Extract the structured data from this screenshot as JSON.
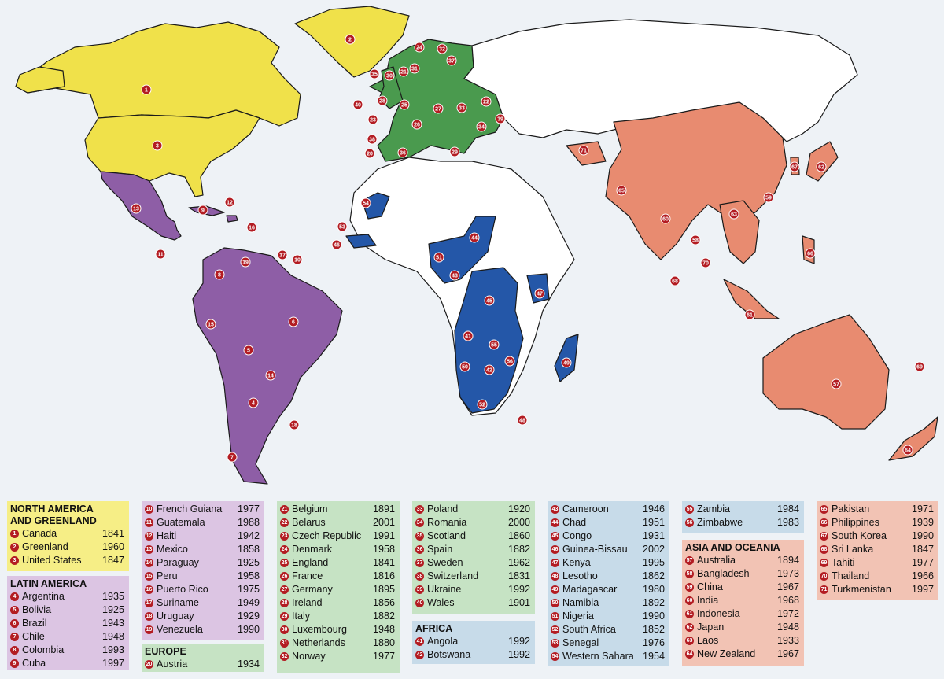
{
  "colors": {
    "north_america": "#f0e14a",
    "latin_america": "#8e5ea6",
    "europe": "#4a9a4e",
    "africa": "#2457a8",
    "asia_oceania": "#e88b70",
    "badge": "#b31c22"
  },
  "markers": [
    "1",
    "2",
    "3",
    "4",
    "5",
    "6",
    "7",
    "8",
    "9",
    "10",
    "11",
    "12",
    "13",
    "14",
    "15",
    "16",
    "17",
    "18",
    "19",
    "20",
    "21",
    "22",
    "23",
    "24",
    "25",
    "26",
    "27",
    "28",
    "29",
    "30",
    "31",
    "32",
    "33",
    "34",
    "35",
    "36",
    "37",
    "38",
    "39",
    "40",
    "41",
    "42",
    "43",
    "44",
    "45",
    "46",
    "47",
    "48",
    "49",
    "50",
    "51",
    "52",
    "53",
    "54",
    "55",
    "56",
    "57",
    "58",
    "59",
    "60",
    "61",
    "62",
    "63",
    "64",
    "65",
    "66",
    "67",
    "68",
    "69",
    "70",
    "71"
  ],
  "legend": {
    "north_america": {
      "title_line1": "NORTH AMERICA",
      "title_line2": "AND GREENLAND",
      "items": [
        {
          "n": "1",
          "name": "Canada",
          "year": "1841"
        },
        {
          "n": "2",
          "name": "Greenland",
          "year": "1960"
        },
        {
          "n": "3",
          "name": "United States",
          "year": "1847"
        }
      ]
    },
    "latin_america": {
      "title": "LATIN AMERICA",
      "items": [
        {
          "n": "4",
          "name": "Argentina",
          "year": "1935"
        },
        {
          "n": "5",
          "name": "Bolivia",
          "year": "1925"
        },
        {
          "n": "6",
          "name": "Brazil",
          "year": "1943"
        },
        {
          "n": "7",
          "name": "Chile",
          "year": "1948"
        },
        {
          "n": "8",
          "name": "Colombia",
          "year": "1993"
        },
        {
          "n": "9",
          "name": "Cuba",
          "year": "1997"
        }
      ]
    },
    "latin_america_2": {
      "items": [
        {
          "n": "10",
          "name": "French Guiana",
          "year": "1977"
        },
        {
          "n": "11",
          "name": "Guatemala",
          "year": "1988"
        },
        {
          "n": "12",
          "name": "Haiti",
          "year": "1942"
        },
        {
          "n": "13",
          "name": "Mexico",
          "year": "1858"
        },
        {
          "n": "14",
          "name": "Paraguay",
          "year": "1925"
        },
        {
          "n": "15",
          "name": "Peru",
          "year": "1958"
        },
        {
          "n": "16",
          "name": "Puerto Rico",
          "year": "1975"
        },
        {
          "n": "17",
          "name": "Suriname",
          "year": "1949"
        },
        {
          "n": "18",
          "name": "Uruguay",
          "year": "1929"
        },
        {
          "n": "19",
          "name": "Venezuela",
          "year": "1990"
        }
      ]
    },
    "europe": {
      "title": "EUROPE",
      "items": [
        {
          "n": "20",
          "name": "Austria",
          "year": "1934"
        }
      ]
    },
    "europe_2": {
      "items": [
        {
          "n": "21",
          "name": "Belgium",
          "year": "1891"
        },
        {
          "n": "22",
          "name": "Belarus",
          "year": "2001"
        },
        {
          "n": "23",
          "name": "Czech Republic",
          "year": "1991"
        },
        {
          "n": "24",
          "name": "Denmark",
          "year": "1958"
        },
        {
          "n": "25",
          "name": "England",
          "year": "1841"
        },
        {
          "n": "26",
          "name": "France",
          "year": "1816"
        },
        {
          "n": "27",
          "name": "Germany",
          "year": "1895"
        },
        {
          "n": "28",
          "name": "Ireland",
          "year": "1856"
        },
        {
          "n": "29",
          "name": "Italy",
          "year": "1882"
        },
        {
          "n": "30",
          "name": "Luxembourg",
          "year": "1948"
        },
        {
          "n": "31",
          "name": "Netherlands",
          "year": "1880"
        },
        {
          "n": "32",
          "name": "Norway",
          "year": "1977"
        }
      ]
    },
    "europe_3": {
      "items": [
        {
          "n": "33",
          "name": "Poland",
          "year": "1920"
        },
        {
          "n": "34",
          "name": "Romania",
          "year": "2000"
        },
        {
          "n": "35",
          "name": "Scotland",
          "year": "1860"
        },
        {
          "n": "36",
          "name": "Spain",
          "year": "1882"
        },
        {
          "n": "37",
          "name": "Sweden",
          "year": "1962"
        },
        {
          "n": "38",
          "name": "Switzerland",
          "year": "1831"
        },
        {
          "n": "39",
          "name": "Ukraine",
          "year": "1992"
        },
        {
          "n": "40",
          "name": "Wales",
          "year": "1901"
        }
      ]
    },
    "africa": {
      "title": "AFRICA",
      "items": [
        {
          "n": "41",
          "name": "Angola",
          "year": "1992"
        },
        {
          "n": "42",
          "name": "Botswana",
          "year": "1992"
        }
      ]
    },
    "africa_2": {
      "items": [
        {
          "n": "43",
          "name": "Cameroon",
          "year": "1946"
        },
        {
          "n": "44",
          "name": "Chad",
          "year": "1951"
        },
        {
          "n": "45",
          "name": "Congo",
          "year": "1931"
        },
        {
          "n": "46",
          "name": "Guinea-Bissau",
          "year": "2002"
        },
        {
          "n": "47",
          "name": "Kenya",
          "year": "1995"
        },
        {
          "n": "48",
          "name": "Lesotho",
          "year": "1862"
        },
        {
          "n": "49",
          "name": "Madagascar",
          "year": "1980"
        },
        {
          "n": "50",
          "name": "Namibia",
          "year": "1892"
        },
        {
          "n": "51",
          "name": "Nigeria",
          "year": "1990"
        },
        {
          "n": "52",
          "name": "South Africa",
          "year": "1852"
        },
        {
          "n": "53",
          "name": "Senegal",
          "year": "1976"
        },
        {
          "n": "54",
          "name": "Western Sahara",
          "year": "1954"
        }
      ]
    },
    "africa_3": {
      "items": [
        {
          "n": "55",
          "name": "Zambia",
          "year": "1984"
        },
        {
          "n": "56",
          "name": "Zimbabwe",
          "year": "1983"
        }
      ]
    },
    "asia_oceania": {
      "title": "ASIA AND OCEANIA",
      "items": [
        {
          "n": "57",
          "name": "Australia",
          "year": "1894"
        },
        {
          "n": "58",
          "name": "Bangladesh",
          "year": "1973"
        },
        {
          "n": "59",
          "name": "China",
          "year": "1967"
        },
        {
          "n": "60",
          "name": "India",
          "year": "1968"
        },
        {
          "n": "61",
          "name": "Indonesia",
          "year": "1972"
        },
        {
          "n": "62",
          "name": "Japan",
          "year": "1948"
        },
        {
          "n": "63",
          "name": "Laos",
          "year": "1933"
        },
        {
          "n": "64",
          "name": "New Zealand",
          "year": "1967"
        }
      ]
    },
    "asia_oceania_2": {
      "items": [
        {
          "n": "65",
          "name": "Pakistan",
          "year": "1971"
        },
        {
          "n": "66",
          "name": "Philippines",
          "year": "1939"
        },
        {
          "n": "67",
          "name": "South Korea",
          "year": "1990"
        },
        {
          "n": "68",
          "name": "Sri Lanka",
          "year": "1847"
        },
        {
          "n": "69",
          "name": "Tahiti",
          "year": "1977"
        },
        {
          "n": "70",
          "name": "Thailand",
          "year": "1966"
        },
        {
          "n": "71",
          "name": "Turkmenistan",
          "year": "1997"
        }
      ]
    }
  }
}
